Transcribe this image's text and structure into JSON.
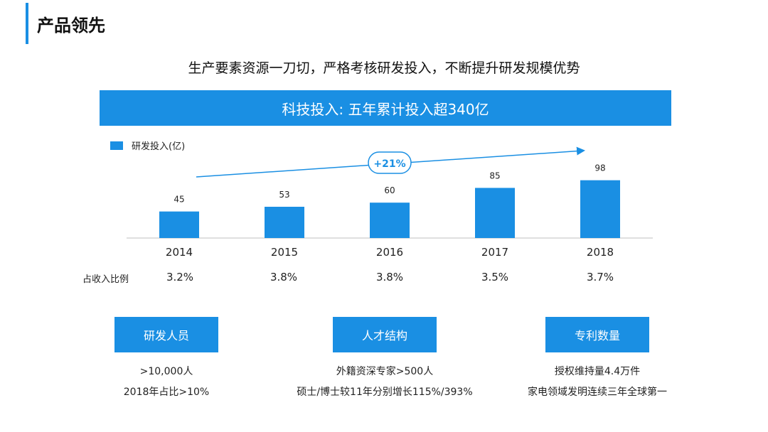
{
  "header": {
    "title": "产品领先"
  },
  "subtitle": "生产要素资源一刀切，严格考核研发投入，不断提升研发规模优势",
  "banner": "科技投入: 五年累计投入超340亿",
  "colors": {
    "accent": "#1a8fe3",
    "bar": "#1a8fe3",
    "text": "#222222"
  },
  "chart_data": {
    "type": "bar",
    "categories": [
      "2014",
      "2015",
      "2016",
      "2017",
      "2018"
    ],
    "series": [
      {
        "name": "研发投入(亿)",
        "values": [
          45,
          53,
          60,
          85,
          98
        ]
      }
    ],
    "legend_position": "top-left",
    "annotation": "+21%",
    "row_label": "占收入比例",
    "row_values": [
      "3.2%",
      "3.8%",
      "3.8%",
      "3.5%",
      "3.7%"
    ],
    "ylim": [
      0,
      100
    ],
    "grid": false
  },
  "boxes": [
    {
      "title": "研发人员",
      "lines": [
        ">10,000人",
        "2018年占比>10%"
      ]
    },
    {
      "title": "人才结构",
      "lines": [
        "外籍资深专家>500人",
        "硕士/博士较11年分别增长115%/393%"
      ]
    },
    {
      "title": "专利数量",
      "lines": [
        "授权维持量4.4万件",
        "家电领域发明连续三年全球第一"
      ]
    }
  ]
}
